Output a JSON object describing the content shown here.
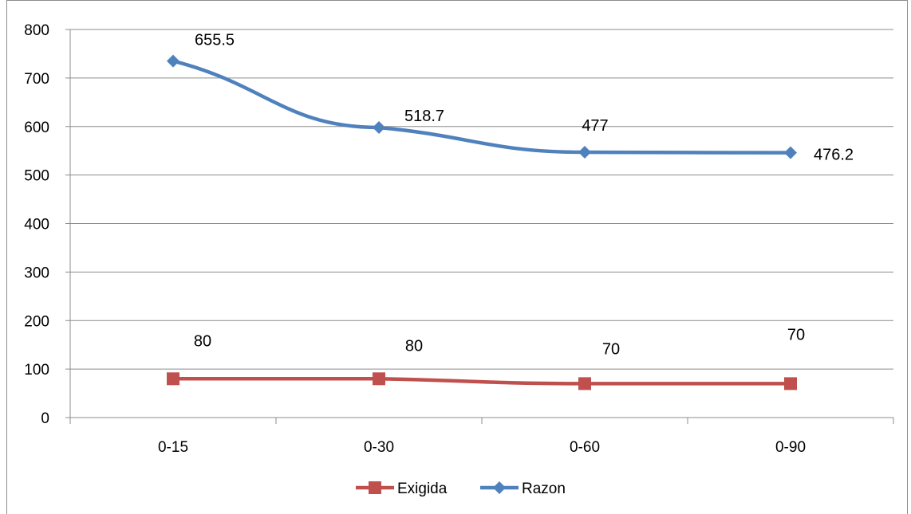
{
  "chart_data": {
    "type": "line",
    "categories": [
      "0-15",
      "0-30",
      "0-60",
      "0-90"
    ],
    "ylim": [
      0,
      800
    ],
    "yticks": [
      0,
      100,
      200,
      300,
      400,
      500,
      600,
      700,
      800
    ],
    "grid": true,
    "legend": "bottom",
    "series": [
      {
        "name": "Exigida",
        "color": "#c0504d",
        "marker": "square",
        "values": [
          80,
          80,
          70,
          70
        ],
        "labels": [
          "80",
          "80",
          "70",
          "70"
        ]
      },
      {
        "name": "Razon",
        "color": "#4f81bd",
        "marker": "diamond",
        "values": [
          735,
          598,
          547,
          546
        ],
        "labels": [
          "655.5",
          "518.7",
          "477",
          "476.2"
        ]
      }
    ]
  }
}
